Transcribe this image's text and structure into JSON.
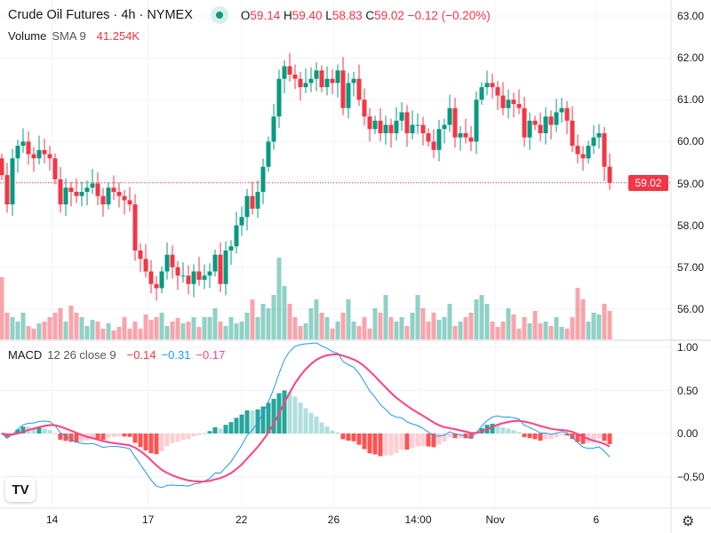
{
  "header": {
    "title": "Crude Oil Futures · 4h · NYMEX",
    "o_label": "O",
    "o": "59.14",
    "h_label": "H",
    "h": "59.40",
    "l_label": "L",
    "l": "58.83",
    "c_label": "C",
    "c": "59.02",
    "change": "−0.12 (−0.20%)"
  },
  "volume_legend": {
    "name": "Volume",
    "params": "SMA 9",
    "value": "41.254K"
  },
  "macd_legend": {
    "name": "MACD",
    "params": "12 26 close 9",
    "hist": "−0.14",
    "macd": "−0.31",
    "signal": "−0.17"
  },
  "price_axis": [
    "63.00",
    "62.00",
    "61.00",
    "60.00",
    "59.00",
    "58.00",
    "57.00",
    "56.00"
  ],
  "price_ticks": [
    63,
    62,
    61,
    60,
    59,
    58,
    57,
    56
  ],
  "last_price_label": "59.02",
  "macd_axis": [
    "1.00",
    "0.50",
    "0.00",
    "−0.50"
  ],
  "macd_ticks": [
    1,
    0.5,
    0,
    -0.5
  ],
  "time_axis": [
    {
      "label": "14",
      "i": 9.5
    },
    {
      "label": "17",
      "i": 27.5
    },
    {
      "label": "22",
      "i": 45
    },
    {
      "label": "26",
      "i": 62.3
    },
    {
      "label": "14:00",
      "i": 78.5
    },
    {
      "label": "Nov",
      "i": 92.5
    },
    {
      "label": "6",
      "i": 111.5
    }
  ],
  "logo": "TV",
  "colors": {
    "up": "#089981",
    "down": "#f23645",
    "macd": "#2196f3",
    "signal": "#ff4081"
  },
  "chart_data": {
    "type": "candlestick",
    "first_open": 59.6,
    "close": [
      59.2,
      58.5,
      59.6,
      59.9,
      60.0,
      59.7,
      59.6,
      59.8,
      59.7,
      59.6,
      59.1,
      58.5,
      58.9,
      58.8,
      58.7,
      58.8,
      58.9,
      59.0,
      58.7,
      58.5,
      58.9,
      58.8,
      58.7,
      58.6,
      58.5,
      57.4,
      57.2,
      56.9,
      56.6,
      56.5,
      56.9,
      57.3,
      57.0,
      56.8,
      56.8,
      56.6,
      56.9,
      56.7,
      56.8,
      56.9,
      57.3,
      56.6,
      57.4,
      57.5,
      58.0,
      58.2,
      58.7,
      58.4,
      58.8,
      59.4,
      60.0,
      60.6,
      61.5,
      61.8,
      61.6,
      61.5,
      61.3,
      61.4,
      61.5,
      61.7,
      61.3,
      61.5,
      61.4,
      61.7,
      60.8,
      61.4,
      61.5,
      61.0,
      60.6,
      60.3,
      60.5,
      60.2,
      60.4,
      60.2,
      60.5,
      60.7,
      60.2,
      60.4,
      60.4,
      60.2,
      60.0,
      59.8,
      60.3,
      60.4,
      60.8,
      60.1,
      60.2,
      60.1,
      60.0,
      61.0,
      61.3,
      61.4,
      61.3,
      61.1,
      60.8,
      61.0,
      60.9,
      60.8,
      60.1,
      60.5,
      60.4,
      60.2,
      60.6,
      60.4,
      60.7,
      60.8,
      60.5,
      59.9,
      59.7,
      59.6,
      59.9,
      60.1,
      60.2,
      59.4,
      59.02
    ],
    "volume_k": [
      70,
      30,
      25,
      20,
      30,
      15,
      12,
      18,
      20,
      25,
      30,
      35,
      20,
      38,
      30,
      25,
      15,
      22,
      20,
      12,
      18,
      10,
      14,
      25,
      12,
      20,
      12,
      28,
      22,
      25,
      30,
      15,
      20,
      24,
      18,
      20,
      25,
      14,
      25,
      25,
      35,
      20,
      15,
      25,
      18,
      20,
      30,
      45,
      25,
      40,
      35,
      50,
      92,
      60,
      40,
      25,
      15,
      18,
      35,
      45,
      30,
      25,
      12,
      20,
      30,
      45,
      20,
      15,
      25,
      12,
      35,
      30,
      50,
      25,
      20,
      25,
      15,
      30,
      50,
      35,
      20,
      30,
      22,
      25,
      40,
      15,
      20,
      25,
      30,
      45,
      50,
      40,
      20,
      14,
      20,
      35,
      28,
      12,
      25,
      18,
      32,
      18,
      20,
      15,
      25,
      14,
      12,
      25,
      58,
      45,
      20,
      30,
      28,
      40,
      32
    ],
    "ylim": [
      55.3,
      63.3
    ],
    "macd_ylim": [
      -0.85,
      1.2
    ]
  }
}
